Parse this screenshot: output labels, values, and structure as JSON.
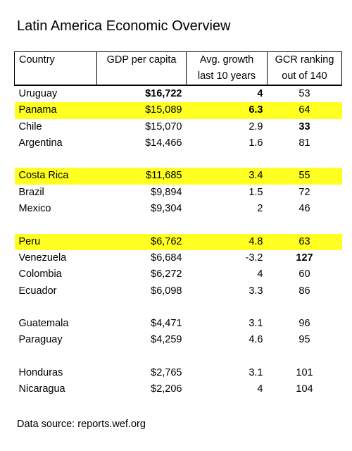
{
  "title": "Latin America Economic Overview",
  "headers": {
    "country": "Country",
    "gdp": "GDP per capita",
    "growth_line1": "Avg. growth",
    "growth_line2": "last 10 years",
    "gcr_line1": "GCR ranking",
    "gcr_line2": "out of 140"
  },
  "highlight_color": "#ffff22",
  "groups": [
    {
      "rows": [
        {
          "country": "Uruguay",
          "gdp": "$16,722",
          "growth": "4",
          "gcr": "53",
          "highlight": false,
          "bold": [
            "gdp",
            "growth"
          ]
        },
        {
          "country": "Panama",
          "gdp": "$15,089",
          "growth": "6.3",
          "gcr": "64",
          "highlight": true,
          "bold": [
            "growth"
          ]
        },
        {
          "country": "Chile",
          "gdp": "$15,070",
          "growth": "2.9",
          "gcr": "33",
          "highlight": false,
          "bold": [
            "gcr"
          ]
        },
        {
          "country": "Argentina",
          "gdp": "$14,466",
          "growth": "1.6",
          "gcr": "81",
          "highlight": false,
          "bold": []
        }
      ]
    },
    {
      "rows": [
        {
          "country": "Costa Rica",
          "gdp": "$11,685",
          "growth": "3.4",
          "gcr": "55",
          "highlight": true,
          "bold": []
        },
        {
          "country": "Brazil",
          "gdp": "$9,894",
          "growth": "1.5",
          "gcr": "72",
          "highlight": false,
          "bold": []
        },
        {
          "country": "Mexico",
          "gdp": "$9,304",
          "growth": "2",
          "gcr": "46",
          "highlight": false,
          "bold": []
        }
      ]
    },
    {
      "rows": [
        {
          "country": "Peru",
          "gdp": "$6,762",
          "growth": "4.8",
          "gcr": "63",
          "highlight": true,
          "bold": []
        },
        {
          "country": "Venezuela",
          "gdp": "$6,684",
          "growth": "-3.2",
          "gcr": "127",
          "highlight": false,
          "bold": [
            "gcr"
          ]
        },
        {
          "country": "Colombia",
          "gdp": "$6,272",
          "growth": "4",
          "gcr": "60",
          "highlight": false,
          "bold": []
        },
        {
          "country": "Ecuador",
          "gdp": "$6,098",
          "growth": "3.3",
          "gcr": "86",
          "highlight": false,
          "bold": []
        }
      ]
    },
    {
      "rows": [
        {
          "country": "Guatemala",
          "gdp": "$4,471",
          "growth": "3.1",
          "gcr": "96",
          "highlight": false,
          "bold": []
        },
        {
          "country": "Paraguay",
          "gdp": "$4,259",
          "growth": "4.6",
          "gcr": "95",
          "highlight": false,
          "bold": []
        }
      ]
    },
    {
      "rows": [
        {
          "country": "Honduras",
          "gdp": "$2,765",
          "growth": "3.1",
          "gcr": "101",
          "highlight": false,
          "bold": []
        },
        {
          "country": "Nicaragua",
          "gdp": "$2,206",
          "growth": "4",
          "gcr": "104",
          "highlight": false,
          "bold": []
        }
      ]
    }
  ],
  "source": "Data source: reports.wef.org"
}
